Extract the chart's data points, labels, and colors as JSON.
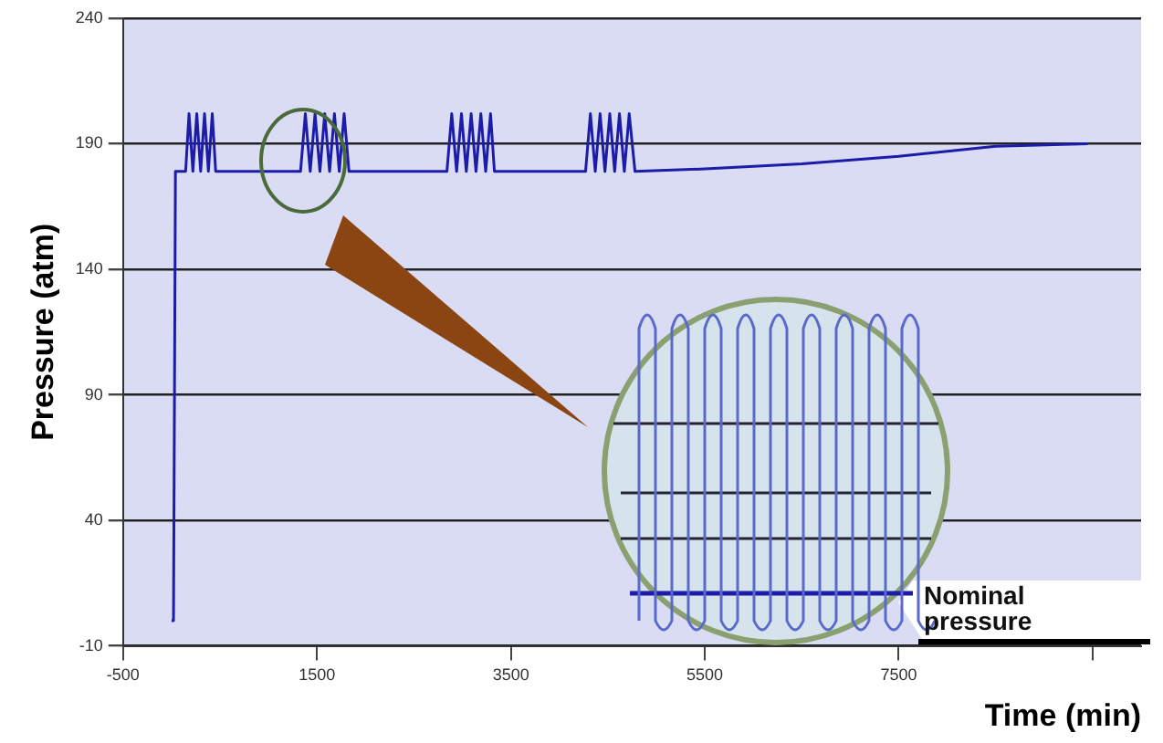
{
  "chart_data": {
    "type": "line",
    "xlabel": "Time (min)",
    "ylabel": "Pressure (atm)",
    "x": [
      0,
      20,
      40,
      145,
      180,
      220,
      260,
      300,
      340,
      380,
      420,
      455,
      500,
      1330,
      1380,
      1430,
      1480,
      1530,
      1580,
      1630,
      1680,
      1730,
      1780,
      1830,
      1870,
      2840,
      2890,
      2940,
      2990,
      3040,
      3090,
      3140,
      3190,
      3240,
      3290,
      3330,
      4270,
      4320,
      4370,
      4420,
      4470,
      4520,
      4570,
      4620,
      4670,
      4720,
      4780,
      5500,
      6500,
      7500,
      8500,
      9450
    ],
    "series": [
      {
        "color": "#1c1ca8",
        "values": [
          0,
          0,
          179,
          179,
          202,
          179,
          202,
          179,
          202,
          179,
          202,
          179,
          179,
          179,
          202,
          179,
          202,
          179,
          202,
          179,
          202,
          179,
          202,
          179,
          179,
          179,
          202,
          179,
          202,
          179,
          202,
          179,
          202,
          179,
          202,
          179,
          179,
          202,
          179,
          202,
          179,
          202,
          179,
          202,
          179,
          202,
          179,
          180,
          182,
          185,
          189,
          190
        ]
      }
    ],
    "xlim": [
      -500,
      10000
    ],
    "xticks": [
      -500,
      1500,
      3500,
      5500,
      7500,
      {
        "value": 9500,
        "label": null
      }
    ],
    "ylim": [
      -10,
      240
    ],
    "yticks": [
      -10,
      40,
      90,
      140,
      190,
      240
    ],
    "grid": "y",
    "legend": false,
    "marker": "none",
    "line_style": "solid",
    "annotations": [
      "Nominal pressure"
    ]
  }
}
